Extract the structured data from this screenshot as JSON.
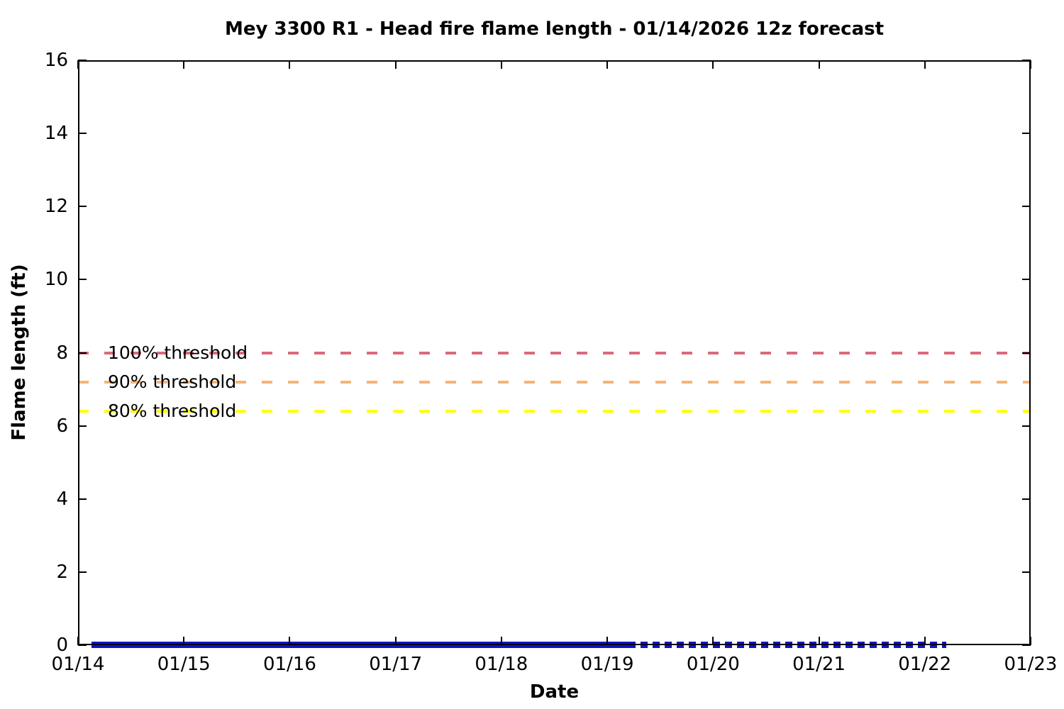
{
  "chart_data": {
    "type": "line",
    "title": "Mey 3300 R1 - Head fire flame length - 01/14/2026 12z forecast",
    "xlabel": "Date",
    "ylabel": "Flame length (ft)",
    "grid": false,
    "legend_position": "none",
    "x_axis": {
      "start_day": 14,
      "end_day": 23,
      "tick_labels": [
        "01/14",
        "01/15",
        "01/16",
        "01/17",
        "01/18",
        "01/19",
        "01/20",
        "01/21",
        "01/22",
        "01/23"
      ]
    },
    "y_axis": {
      "min": 0,
      "max": 16,
      "tick_values": [
        0,
        2,
        4,
        6,
        8,
        10,
        12,
        14,
        16
      ],
      "tick_labels": [
        "0",
        "2",
        "4",
        "6",
        "8",
        "10",
        "12",
        "14",
        "16"
      ]
    },
    "thresholds": [
      {
        "label": "100% threshold",
        "value": 8,
        "color": "#d96a7d"
      },
      {
        "label": "90% threshold",
        "value": 7.2,
        "color": "#f6b474"
      },
      {
        "label": "80% threshold",
        "value": 6.4,
        "color": "#ffff00"
      }
    ],
    "series": [
      {
        "name": "flame-length-observed",
        "style": "solid",
        "color": "#1313c0",
        "y_value": 0,
        "x_start": 14.13,
        "x_end": 19.2
      },
      {
        "name": "flame-length-forecast",
        "style": "dotted",
        "color": "#1313c0",
        "y_value": 0,
        "x_start": 19.2,
        "x_end": 22.2
      }
    ]
  }
}
